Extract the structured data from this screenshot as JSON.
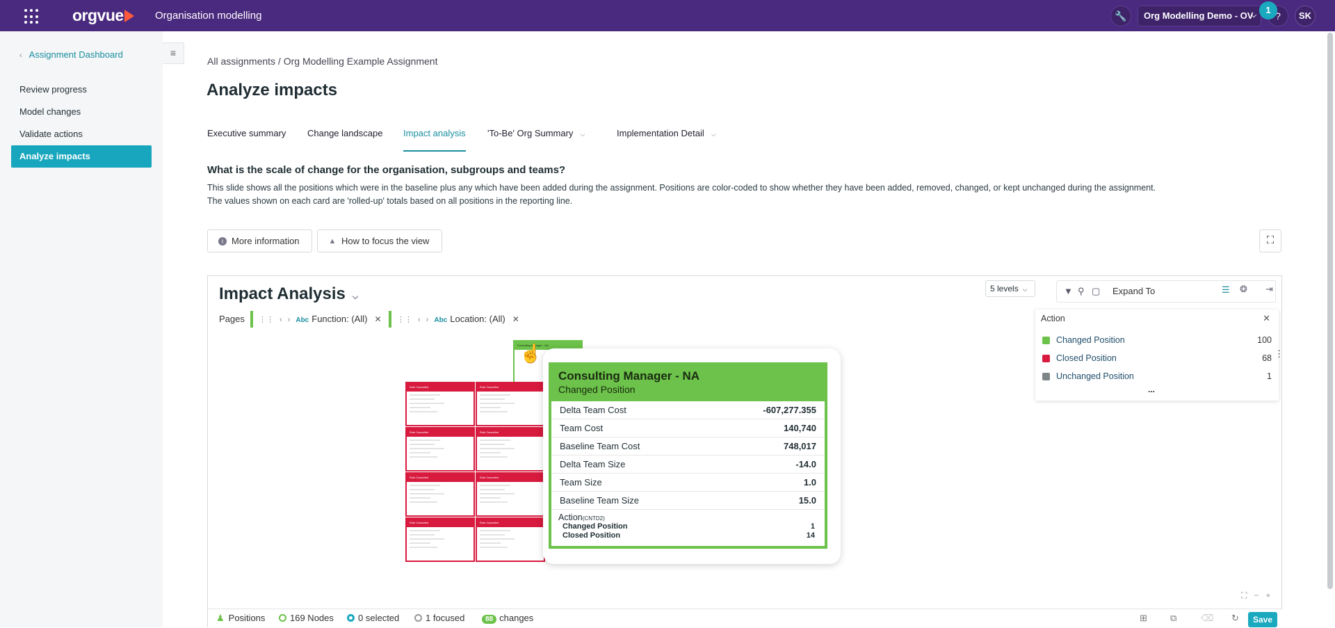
{
  "topbar": {
    "brand": "orgvue",
    "app_title": "Organisation modelling",
    "workspace": "Org Modelling Demo - OV",
    "notification_count": "1",
    "help": "?",
    "avatar": "SK"
  },
  "sidebar": {
    "back_link": "Assignment Dashboard",
    "items": [
      {
        "label": "Review progress"
      },
      {
        "label": "Model changes"
      },
      {
        "label": "Validate actions"
      },
      {
        "label": "Analyze impacts"
      }
    ]
  },
  "main": {
    "breadcrumb": "All assignments / Org Modelling Example Assignment",
    "title": "Analyze impacts",
    "tabs": [
      {
        "label": "Executive summary"
      },
      {
        "label": "Change landscape"
      },
      {
        "label": "Impact analysis"
      },
      {
        "label": "'To-Be' Org Summary"
      },
      {
        "label": "Implementation Detail"
      }
    ],
    "question": "What is the scale of change for the organisation, subgroups and teams?",
    "desc_line1": "This slide shows all the positions which were in the baseline plus any which have been added during the assignment. Positions are color-coded to show whether they have been added, removed, changed, or kept unchanged during the assignment.",
    "desc_line2": "The values shown on each card are 'rolled-up' totals based on all positions in the reporting line.",
    "more_info_btn": "More information",
    "focus_btn": "How to focus the view"
  },
  "panel": {
    "title": "Impact Analysis",
    "pages_label": "Pages",
    "filters": [
      {
        "label": "Function: (All)"
      },
      {
        "label": "Location: (All)"
      }
    ],
    "filter_type": "Abc",
    "expand_label": "Expand To",
    "levels": "5 levels",
    "legend": {
      "title": "Action",
      "items": [
        {
          "label": "Changed Position",
          "count": "100",
          "color": "#6cc24a"
        },
        {
          "label": "Closed Position",
          "count": "68",
          "color": "#d71a3e"
        },
        {
          "label": "Unchanged Position",
          "count": "1",
          "color": "#7d8589"
        }
      ],
      "more": "..."
    },
    "top_card_label": "Consulting Manager - NA",
    "mini_card_label": "Role Cancelled",
    "card": {
      "title": "Consulting Manager - NA",
      "subtitle": "Changed Position",
      "rows": [
        {
          "label": "Delta Team Cost",
          "value": "-607,277.355"
        },
        {
          "label": "Team Cost",
          "value": "140,740"
        },
        {
          "label": "Baseline Team Cost",
          "value": "748,017"
        },
        {
          "label": "Delta Team Size",
          "value": "-14.0"
        },
        {
          "label": "Team Size",
          "value": "1.0"
        },
        {
          "label": "Baseline Team Size",
          "value": "15.0"
        }
      ],
      "action_label": "Action",
      "action_suffix": "(CNTD2)",
      "action_rows": [
        {
          "label": "Changed Position",
          "value": "1"
        },
        {
          "label": "Closed Position",
          "value": "14"
        }
      ]
    },
    "status": {
      "positions": "Positions",
      "nodes": "169 Nodes",
      "selected": "0 selected",
      "focused": "1 focused",
      "changes_count": "88",
      "changes_label": "changes",
      "save": "Save"
    }
  }
}
